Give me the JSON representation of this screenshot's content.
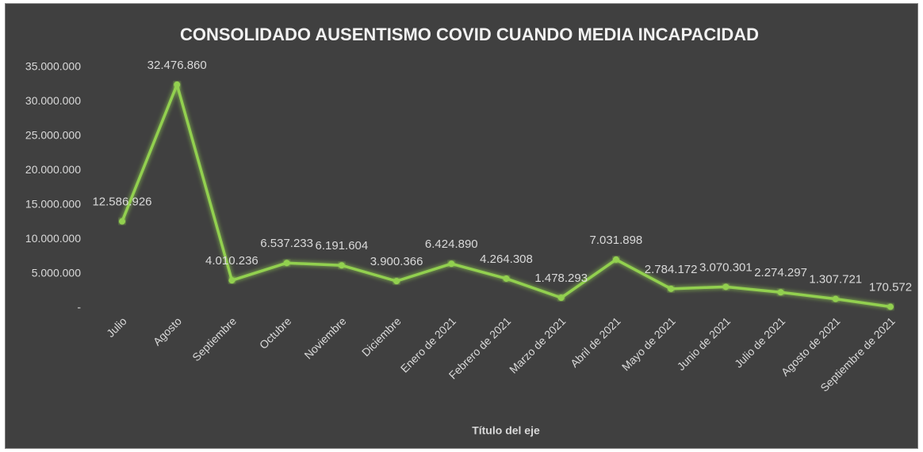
{
  "chart_data": {
    "type": "line",
    "title": "CONSOLIDADO AUSENTISMO COVID CUANDO MEDIA INCAPACIDAD",
    "x_label": "Título del eje",
    "categories": [
      "Julio",
      "Agosto",
      "Septiembre",
      "Octubre",
      "Noviembre",
      "Diciembre",
      "Enero de 2021",
      "Febrero de 2021",
      "Marzo de 2021",
      "Abril de 2021",
      "Mayo de 2021",
      "Junio de 2021",
      "Julio de 2021",
      "Agosto de 2021",
      "Septiembre de 2021"
    ],
    "values": [
      12586926,
      32476860,
      4010236,
      6537233,
      6191604,
      3900366,
      6424890,
      4264308,
      1478293,
      7031898,
      2784172,
      3070301,
      2274297,
      1307721,
      170572
    ],
    "value_labels": [
      "12.586.926",
      "32.476.860",
      "4.010.236",
      "6.537.233",
      "6.191.604",
      "3.900.366",
      "6.424.890",
      "4.264.308",
      "1.478.293",
      "7.031.898",
      "2.784.172",
      "3.070.301",
      "2.274.297",
      "1.307.721",
      "170.572"
    ],
    "color": "#92d050",
    "ylim": [
      0,
      35000000
    ],
    "yticks": [
      {
        "value": 0,
        "label": "-"
      },
      {
        "value": 5000000,
        "label": "5.000.000"
      },
      {
        "value": 10000000,
        "label": "10.000.000"
      },
      {
        "value": 15000000,
        "label": "15.000.000"
      },
      {
        "value": 20000000,
        "label": "20.000.000"
      },
      {
        "value": 25000000,
        "label": "25.000.000"
      },
      {
        "value": 30000000,
        "label": "30.000.000"
      },
      {
        "value": 35000000,
        "label": "35.000.000"
      }
    ],
    "grid": false
  }
}
